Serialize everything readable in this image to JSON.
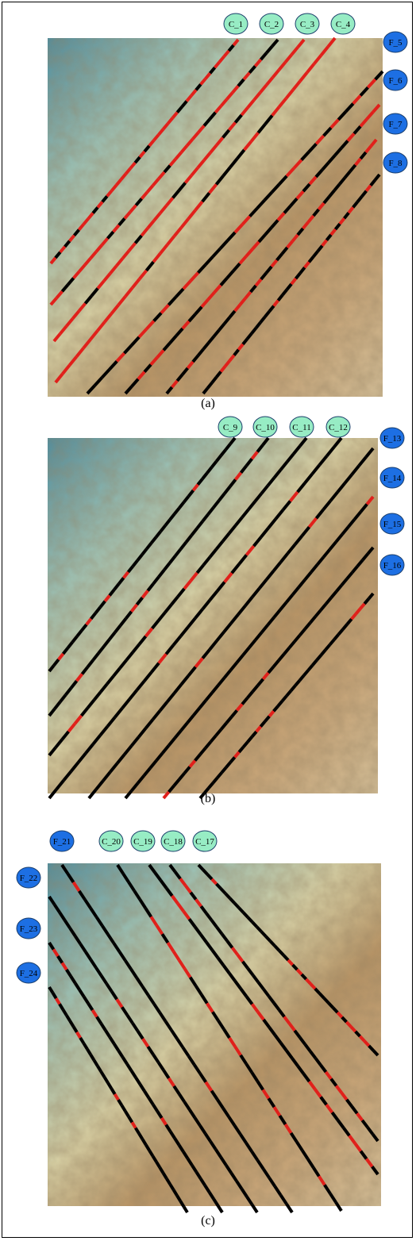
{
  "colors": {
    "low": "#5e97a3",
    "mid": "#d8d3a2",
    "high": "#a07a50",
    "dark": "#7a5634",
    "valid_segment": "#000000",
    "invalid_segment": "#e0201b",
    "c_marker": "#97ecc4",
    "f_marker": "#1d6fe3"
  },
  "panels": [
    {
      "caption": "(a)",
      "c_labels": [
        "C_1",
        "C_2",
        "C_3",
        "C_4"
      ],
      "f_labels": [
        "F_5",
        "F_6",
        "F_7",
        "F_8"
      ],
      "red_dominance": 0.72
    },
    {
      "caption": "(b)",
      "c_labels": [
        "C_9",
        "C_10",
        "C_11",
        "C_12"
      ],
      "f_labels": [
        "F_13",
        "F_14",
        "F_15",
        "F_16"
      ],
      "red_dominance": 0.08
    },
    {
      "caption": "(c)",
      "f_labels_top": [
        "F_21"
      ],
      "c_labels": [
        "C_20",
        "C_19",
        "C_18",
        "C_17"
      ],
      "f_labels": [
        "F_22",
        "F_23",
        "F_24"
      ],
      "red_dominance": 0.15
    }
  ]
}
